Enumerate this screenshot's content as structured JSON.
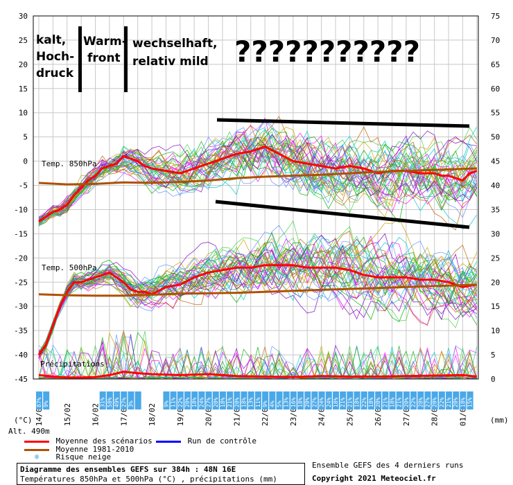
{
  "chart_data": {
    "type": "line",
    "title": "Diagramme des ensembles GEFS sur 384h : 48N 16E",
    "subtitle": "Températures 850hPa et 500hPa (°C) , précipitations (mm)",
    "left_unit": "(°C)",
    "right_unit": "(mm)",
    "altitude": "Alt. 490m",
    "left_axis": {
      "ylim": [
        -45,
        30
      ],
      "ticks": [
        "30",
        "25",
        "20",
        "15",
        "10",
        "5",
        "0",
        "-5",
        "-10",
        "-15",
        "-20",
        "-25",
        "-30",
        "-35",
        "-40",
        "-45"
      ]
    },
    "right_axis": {
      "ylim": [
        0,
        75
      ],
      "ticks": [
        "75",
        "70",
        "65",
        "60",
        "55",
        "50",
        "45",
        "40",
        "35",
        "30",
        "25",
        "20",
        "15",
        "10",
        "5",
        "0"
      ]
    },
    "x_dates": [
      "14/02",
      "15/02",
      "16/02",
      "17/02",
      "18/02",
      "19/02",
      "20/02",
      "21/02",
      "22/02",
      "23/02",
      "24/02",
      "25/02",
      "26/02",
      "27/02",
      "28/02",
      "01/03"
    ],
    "grid": true,
    "panel_labels": {
      "t850": "Temp. 850hPa",
      "t500": "Temp. 500hPa",
      "precip": "Précipitations"
    },
    "series": [
      {
        "name": "Moyenne des scénarios",
        "group": "t850",
        "color": "#ff0000",
        "x": [
          0,
          0.25,
          0.5,
          0.75,
          1,
          1.25,
          1.5,
          1.75,
          2,
          2.25,
          2.5,
          2.75,
          3,
          3.25,
          3.5,
          3.75,
          4,
          4.5,
          5,
          5.5,
          6,
          6.5,
          7,
          7.5,
          8,
          8.5,
          9,
          9.5,
          10,
          10.5,
          11,
          11.5,
          12,
          12.5,
          13,
          13.5,
          14,
          14.25,
          14.5,
          14.75,
          15,
          15.25,
          15.5
        ],
        "y": [
          -12.5,
          -11.5,
          -10.5,
          -10,
          -9,
          -7,
          -5.5,
          -4,
          -3,
          -1.5,
          -1,
          -0.5,
          1,
          0.5,
          0,
          -1,
          -1.5,
          -2,
          -2.5,
          -1.5,
          -0.5,
          0.5,
          1.5,
          2,
          3,
          1.5,
          0,
          -0.5,
          -1,
          -1.5,
          -1,
          -1.5,
          -2.5,
          -2,
          -2,
          -2.5,
          -2.5,
          -3,
          -3,
          -3.5,
          -4,
          -2.5,
          -2
        ]
      },
      {
        "name": "Moyenne 1981-2010",
        "group": "t850",
        "color": "#b05000",
        "x": [
          0,
          1,
          2,
          3,
          4,
          5,
          6,
          7,
          8,
          9,
          10,
          11,
          12,
          13,
          14,
          15,
          15.5
        ],
        "y": [
          -4.5,
          -4.8,
          -4.7,
          -4.4,
          -4.5,
          -4.3,
          -4,
          -3.5,
          -3.2,
          -3,
          -2.8,
          -2.5,
          -2.2,
          -2,
          -1.8,
          -1.6,
          -1.5
        ]
      },
      {
        "name": "Moyenne des scénarios",
        "group": "t500",
        "color": "#ff0000",
        "x": [
          0,
          0.25,
          0.5,
          0.75,
          1,
          1.25,
          1.5,
          1.75,
          2,
          2.25,
          2.5,
          2.75,
          3,
          3.25,
          3.5,
          3.75,
          4,
          4.5,
          5,
          5.5,
          6,
          6.5,
          7,
          7.5,
          8,
          8.5,
          9,
          9.5,
          10,
          10.5,
          11,
          11.5,
          12,
          12.5,
          13,
          13.5,
          14,
          14.5,
          15,
          15.5
        ],
        "y": [
          -40,
          -38,
          -34,
          -30,
          -27,
          -25,
          -25,
          -24.5,
          -24,
          -23.5,
          -23,
          -24,
          -25,
          -26.5,
          -27,
          -27,
          -27.5,
          -26,
          -25.5,
          -24,
          -23,
          -22.5,
          -22,
          -22,
          -21.5,
          -21.5,
          -21.5,
          -22,
          -22,
          -22,
          -22.5,
          -23.5,
          -24,
          -24,
          -24,
          -24.5,
          -24.5,
          -25,
          -26,
          -25.5
        ]
      },
      {
        "name": "Moyenne 1981-2010",
        "group": "t500",
        "color": "#b05000",
        "x": [
          0,
          1,
          2,
          3,
          4,
          5,
          6,
          7,
          8,
          9,
          10,
          11,
          12,
          13,
          14,
          15,
          15.5
        ],
        "y": [
          -27.5,
          -27.7,
          -27.8,
          -27.8,
          -27.6,
          -27.4,
          -27.3,
          -27.2,
          -27,
          -26.8,
          -26.6,
          -26.4,
          -26.2,
          -26,
          -25.8,
          -25.6,
          -25.5
        ]
      },
      {
        "name": "Moyenne des scénarios",
        "group": "precip",
        "color": "#ff0000",
        "x": [
          0,
          0.5,
          1,
          1.5,
          2,
          2.5,
          3,
          3.5,
          4,
          5,
          6,
          7,
          8,
          9,
          10,
          11,
          12,
          13,
          14,
          15,
          15.5
        ],
        "y": [
          0.8,
          0.5,
          0.3,
          0.3,
          0.4,
          0.8,
          1.5,
          1.2,
          1,
          0.8,
          1,
          0.6,
          0.5,
          0.4,
          0.6,
          0.5,
          0.5,
          0.6,
          0.7,
          0.8,
          0.5
        ]
      }
    ],
    "snow_risk": {
      "x": [
        0,
        0.25,
        2.25,
        2.5,
        2.75,
        3,
        3.25,
        3.5,
        4.5,
        4.75,
        5,
        5.25,
        5.5,
        5.75,
        6,
        6.25,
        6.5,
        6.75,
        7,
        7.25,
        7.5,
        7.75,
        8,
        8.25,
        8.5,
        8.75,
        9,
        9.25,
        9.5,
        9.75,
        10,
        10.25,
        10.5,
        10.75,
        11,
        11.25,
        11.5,
        11.75,
        12,
        12.25,
        12.5,
        12.75,
        13,
        13.25,
        13.5,
        13.75,
        14,
        14.25,
        14.5,
        14.75,
        15,
        15.25
      ],
      "labels": [
        "87%",
        "9%",
        "31%",
        "58%",
        "49%",
        "27%",
        "3%",
        "",
        "9%",
        "11%",
        "22%",
        "20%",
        "18%",
        "24%",
        "27%",
        "20%",
        "18%",
        "21%",
        "20%",
        "18%",
        "13%",
        "11%",
        "9%",
        "4%",
        "5%",
        "13%",
        "16%",
        "18%",
        "20%",
        "27%",
        "24%",
        "24%",
        "18%",
        "21%",
        "21%",
        "18%",
        "22%",
        "18%",
        "20%",
        "21%",
        "18%",
        "21%",
        "20%",
        "22%",
        "28%",
        "27%",
        "20%",
        "22%",
        "21%",
        "20%",
        "18%",
        "15%"
      ]
    }
  },
  "annotations": {
    "kalt": [
      "kalt,",
      "Hoch-",
      "druck"
    ],
    "warm": [
      "Warm-",
      "front"
    ],
    "wechsel": [
      "wechselhaft,",
      "relativ mild"
    ],
    "question": "???????????"
  },
  "legend": {
    "mean": "Moyenne des scénarios",
    "control": "Run de contrôle",
    "climate": "Moyenne 1981-2010",
    "snow": "Risque neige"
  },
  "footer": {
    "title": "Diagramme des ensembles GEFS sur 384h : 48N 16E",
    "subtitle": "Températures 850hPa et 500hPa (°C) , précipitations (mm)",
    "runs": "Ensemble GEFS des 4 derniers runs",
    "copyright": "Copyright 2021 Meteociel.fr"
  },
  "colors": {
    "mean": "#ff0000",
    "climate": "#b05000",
    "control": "#0000ff",
    "grid": "#c8c8c8",
    "snow": "#4aa8e8",
    "members": [
      "#00b000",
      "#ff00ff",
      "#00c8c8",
      "#c8a000",
      "#8000c0",
      "#6090ff",
      "#40d040",
      "#c06000"
    ]
  }
}
